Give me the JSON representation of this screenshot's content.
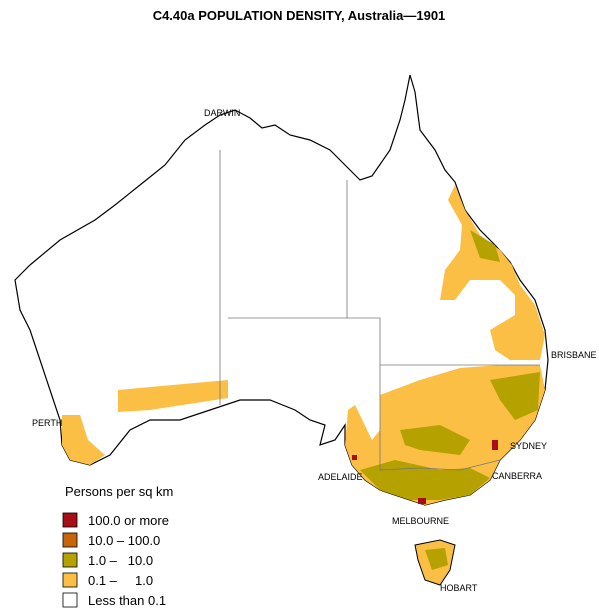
{
  "title": "C4.40a POPULATION DENSITY, Australia—1901",
  "cities": [
    "DARWIN",
    "BRISBANE",
    "PERTH",
    "SYDNEY",
    "ADELAIDE",
    "CANBERRA",
    "MELBOURNE",
    "HOBART"
  ],
  "legend": {
    "title": "Persons per sq km",
    "items": [
      {
        "label": "100.0 or more",
        "color": "#a50f15"
      },
      {
        "label": "10.0 – 100.0",
        "color": "#c8640a"
      },
      {
        "label": "1.0 –   10.0",
        "color": "#b5a100"
      },
      {
        "label": "0.1 –     1.0",
        "color": "#fbbf45"
      },
      {
        "label": "Less than 0.1",
        "color": "#ffffff"
      }
    ]
  }
}
